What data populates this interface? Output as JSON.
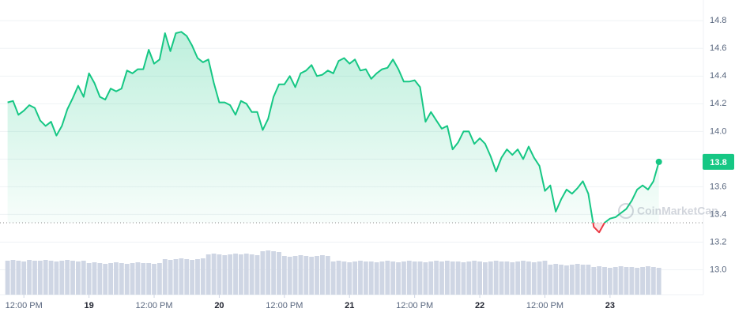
{
  "chart_data": {
    "type": "line",
    "x": [
      9,
      10,
      11,
      12,
      13,
      14,
      15,
      16,
      17,
      18,
      19,
      20,
      21,
      22,
      23,
      24,
      25,
      26,
      27,
      28,
      29,
      30,
      31,
      32,
      33,
      34,
      35,
      36,
      37,
      38,
      39,
      40,
      41,
      42,
      43,
      44,
      45,
      46,
      47,
      48,
      49,
      50,
      51,
      52,
      53,
      54,
      55,
      56,
      57,
      58,
      59,
      60,
      61,
      62,
      63,
      64,
      65,
      66,
      67,
      68,
      69,
      70,
      71,
      72,
      73,
      74,
      75,
      76,
      77,
      78,
      79,
      80,
      81,
      82,
      83,
      84,
      85,
      86,
      87,
      88,
      89,
      90,
      91,
      92,
      93,
      94,
      95,
      96,
      97,
      98,
      99,
      100,
      101,
      102,
      103,
      104,
      105,
      106,
      107,
      108,
      109,
      110,
      111,
      112,
      113,
      114,
      115,
      116,
      117,
      118,
      119,
      120,
      121,
      122,
      123,
      124,
      125,
      126,
      127,
      128,
      129
    ],
    "values": [
      14.21,
      14.22,
      14.12,
      14.15,
      14.19,
      14.17,
      14.08,
      14.04,
      14.07,
      13.97,
      14.04,
      14.16,
      14.24,
      14.33,
      14.25,
      14.42,
      14.35,
      14.25,
      14.23,
      14.31,
      14.29,
      14.31,
      14.44,
      14.42,
      14.45,
      14.45,
      14.59,
      14.49,
      14.52,
      14.71,
      14.58,
      14.71,
      14.72,
      14.69,
      14.62,
      14.53,
      14.5,
      14.52,
      14.35,
      14.21,
      14.21,
      14.19,
      14.12,
      14.22,
      14.2,
      14.14,
      14.14,
      14.01,
      14.09,
      14.25,
      14.34,
      14.34,
      14.4,
      14.32,
      14.42,
      14.44,
      14.48,
      14.4,
      14.41,
      14.44,
      14.42,
      14.51,
      14.53,
      14.49,
      14.52,
      14.44,
      14.45,
      14.38,
      14.42,
      14.45,
      14.46,
      14.52,
      14.45,
      14.36,
      14.36,
      14.37,
      14.32,
      14.07,
      14.14,
      14.08,
      14.02,
      14.04,
      13.87,
      13.92,
      14.0,
      14.0,
      13.91,
      13.95,
      13.91,
      13.82,
      13.71,
      13.81,
      13.87,
      13.83,
      13.87,
      13.8,
      13.89,
      13.81,
      13.75,
      13.57,
      13.61,
      13.42,
      13.51,
      13.58,
      13.55,
      13.59,
      13.64,
      13.55,
      13.31,
      13.27,
      13.34,
      13.37,
      13.38,
      13.41,
      13.44,
      13.5,
      13.58,
      13.61,
      13.58,
      13.64,
      13.78
    ],
    "color": "#16c784",
    "down_color": "#ea3943",
    "baseline": 13.34,
    "volume": [
      43,
      44,
      43,
      42,
      44,
      43,
      43,
      44,
      43,
      42,
      43,
      44,
      43,
      42,
      43,
      40,
      41,
      40,
      39,
      40,
      41,
      40,
      39,
      40,
      41,
      40,
      40,
      39,
      40,
      45,
      44,
      45,
      46,
      45,
      44,
      45,
      46,
      51,
      52,
      51,
      50,
      51,
      52,
      51,
      52,
      51,
      50,
      55,
      56,
      55,
      54,
      49,
      48,
      49,
      50,
      49,
      48,
      49,
      50,
      49,
      42,
      43,
      42,
      41,
      42,
      43,
      42,
      42,
      41,
      42,
      43,
      42,
      41,
      42,
      43,
      42,
      42,
      41,
      42,
      43,
      42,
      43,
      42,
      42,
      41,
      42,
      43,
      42,
      41,
      42,
      43,
      42,
      42,
      41,
      42,
      43,
      42,
      41,
      42,
      43,
      38,
      39,
      38,
      37,
      38,
      39,
      38,
      38,
      35,
      36,
      35,
      34,
      35,
      36,
      35,
      35,
      34,
      35,
      36,
      35,
      34
    ],
    "volume_color": "#cfd6e4",
    "xlim": [
      7.6,
      137.2
    ],
    "xticks": [
      {
        "value": 12,
        "label": "12:00 PM"
      },
      {
        "value": 24,
        "label": "19"
      },
      {
        "value": 36,
        "label": "12:00 PM"
      },
      {
        "value": 48,
        "label": "20"
      },
      {
        "value": 60,
        "label": "12:00 PM"
      },
      {
        "value": 72,
        "label": "21"
      },
      {
        "value": 84,
        "label": "12:00 PM"
      },
      {
        "value": 96,
        "label": "22"
      },
      {
        "value": 108,
        "label": "12:00 PM"
      },
      {
        "value": 120,
        "label": "23"
      }
    ],
    "ylim": [
      12.82,
      14.95
    ],
    "yticks": [
      {
        "value": 13,
        "label": "13.0"
      },
      13.2,
      13.4,
      13.6,
      13.8,
      {
        "value": 14,
        "label": "14.0"
      },
      14.2,
      14.4,
      14.6,
      14.8
    ],
    "grid": true,
    "marker": {
      "value": 13.78,
      "label": "13.8"
    },
    "watermark": "CoinMarketCap"
  }
}
